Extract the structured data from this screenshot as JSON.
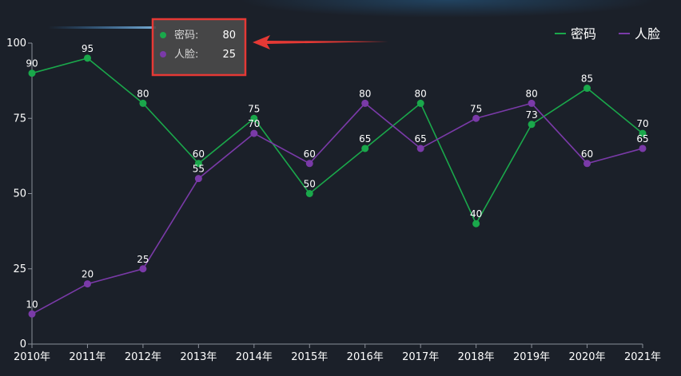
{
  "chart_data": {
    "type": "line",
    "title": "",
    "xlabel": "",
    "ylabel": "",
    "ylim": [
      0,
      100
    ],
    "yticks": [
      "0",
      "25",
      "50",
      "75",
      "100"
    ],
    "categories": [
      "2010年",
      "2011年",
      "2012年",
      "2013年",
      "2014年",
      "2015年",
      "2016年",
      "2017年",
      "2018年",
      "2019年",
      "2020年",
      "2021年"
    ],
    "series": [
      {
        "name": "密码",
        "color": "#1aa84b",
        "values": [
          90,
          95,
          80,
          60,
          75,
          50,
          65,
          80,
          40,
          73,
          85,
          70
        ]
      },
      {
        "name": "人脸",
        "color": "#7a3aa8",
        "values": [
          10,
          20,
          25,
          55,
          70,
          60,
          80,
          65,
          75,
          80,
          60,
          65
        ]
      }
    ],
    "legend_position": "top-right",
    "grid": false,
    "tooltip": {
      "category_index": 2,
      "items": [
        {
          "name": "密码",
          "value": "80"
        },
        {
          "name": "人脸",
          "value": "25"
        }
      ]
    }
  }
}
